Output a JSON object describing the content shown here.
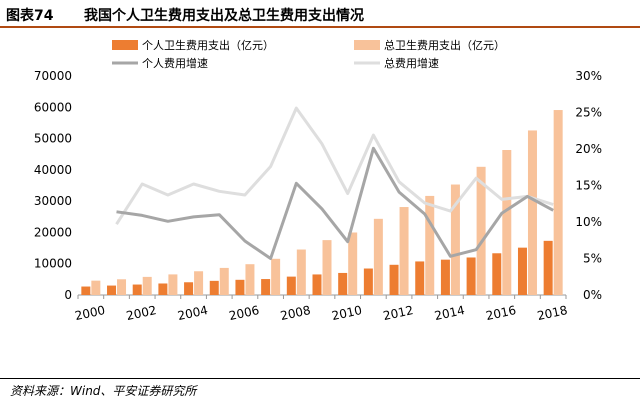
{
  "figure": {
    "label": "图表74",
    "title": "我国个人卫生费用支出及总卫生费用支出情况",
    "source": "资料来源：Wind、平安证券研究所"
  },
  "colors": {
    "personal_bar": "#ed7d31",
    "total_bar": "#f8c29a",
    "personal_line": "#a6a6a6",
    "total_line": "#dedede",
    "axis": "#999999"
  },
  "chart_data": {
    "type": "bar",
    "x": [
      "2000",
      "2001",
      "2002",
      "2003",
      "2004",
      "2005",
      "2006",
      "2007",
      "2008",
      "2009",
      "2010",
      "2011",
      "2012",
      "2013",
      "2014",
      "2015",
      "2016",
      "2017",
      "2018"
    ],
    "x_tick_labels": [
      "2000",
      "2002",
      "2004",
      "2006",
      "2008",
      "2010",
      "2012",
      "2014",
      "2016",
      "2018"
    ],
    "y_left": {
      "lim": [
        0,
        70000
      ],
      "ticks": [
        "0",
        "10000",
        "20000",
        "30000",
        "40000",
        "50000",
        "60000",
        "70000"
      ]
    },
    "y_right": {
      "lim": [
        0,
        30
      ],
      "ticks": [
        "0%",
        "5%",
        "10%",
        "15%",
        "20%",
        "25%",
        "30%"
      ]
    },
    "series": [
      {
        "name": "个人卫生费用支出（亿元）",
        "type": "bar",
        "axis": "left",
        "values": [
          2705,
          3014,
          3343,
          3679,
          4071,
          4521,
          4854,
          5098,
          5876,
          6571,
          7051,
          8465,
          9656,
          10729,
          11295,
          11992,
          13337,
          15134,
          17310
        ]
      },
      {
        "name": "总卫生费用支出（亿元）",
        "type": "bar",
        "axis": "left",
        "values": [
          4587,
          5026,
          5790,
          6584,
          7590,
          8660,
          9843,
          11574,
          14535,
          17542,
          19980,
          24346,
          28119,
          31669,
          35312,
          40975,
          46345,
          52598,
          59122
        ]
      },
      {
        "name": "个人费用增速",
        "type": "line",
        "axis": "right",
        "values": [
          null,
          11.4,
          10.9,
          10.1,
          10.7,
          11.0,
          7.4,
          5.0,
          15.3,
          11.8,
          7.3,
          20.1,
          14.1,
          11.1,
          5.3,
          6.2,
          11.2,
          13.5,
          11.6
        ]
      },
      {
        "name": "总费用增速",
        "type": "line",
        "axis": "right",
        "values": [
          null,
          9.7,
          15.2,
          13.7,
          15.2,
          14.2,
          13.7,
          17.6,
          25.6,
          20.7,
          13.9,
          21.9,
          15.5,
          12.6,
          11.5,
          16.0,
          13.1,
          13.5,
          12.4
        ]
      }
    ],
    "legend_placement": "top",
    "grid": false
  }
}
